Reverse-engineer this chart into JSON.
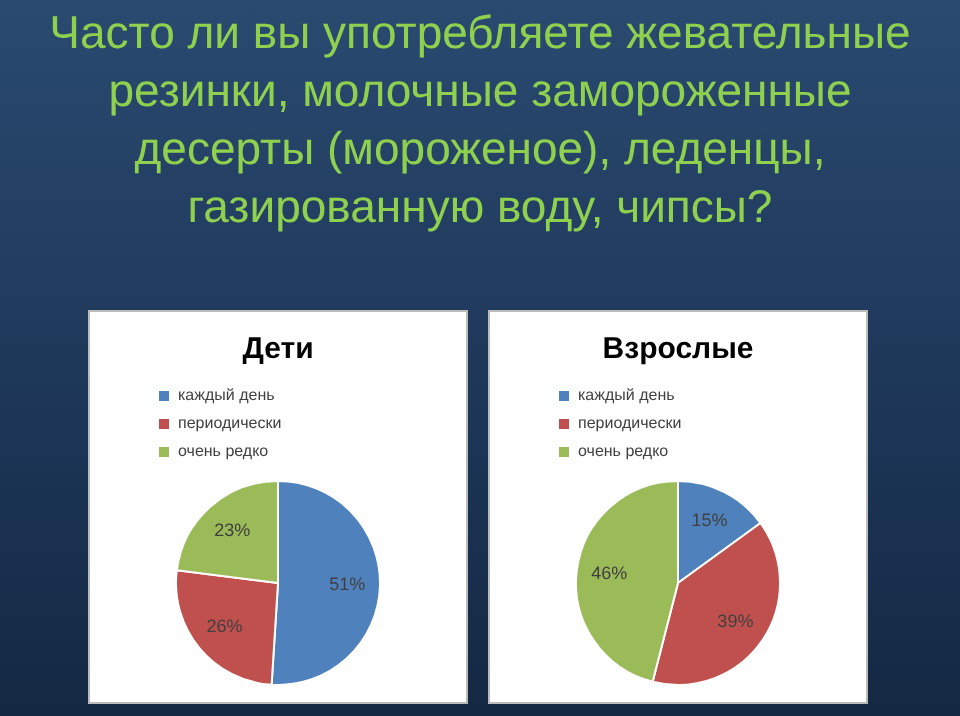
{
  "chart_data": [
    {
      "type": "pie",
      "title": "Дети",
      "annotations": [
        "Часто ли вы употребляете жевательные резинки, молочные замороженные десерты (мороженое), леденцы, газированную воду, чипсы?"
      ],
      "categories": [
        "каждый день",
        "периодически",
        "очень редко"
      ],
      "values": [
        51,
        26,
        23
      ],
      "colors": [
        "#4f81bd",
        "#c0504d",
        "#9bbb59"
      ],
      "value_labels": [
        "51%",
        "26%",
        "23%"
      ],
      "legend": "top"
    },
    {
      "type": "pie",
      "title": "Взрослые",
      "categories": [
        "каждый день",
        "периодически",
        "очень редко"
      ],
      "values": [
        15,
        39,
        46
      ],
      "colors": [
        "#4f81bd",
        "#c0504d",
        "#9bbb59"
      ],
      "value_labels": [
        "15%",
        "39%",
        "46%"
      ],
      "legend": "top"
    }
  ]
}
